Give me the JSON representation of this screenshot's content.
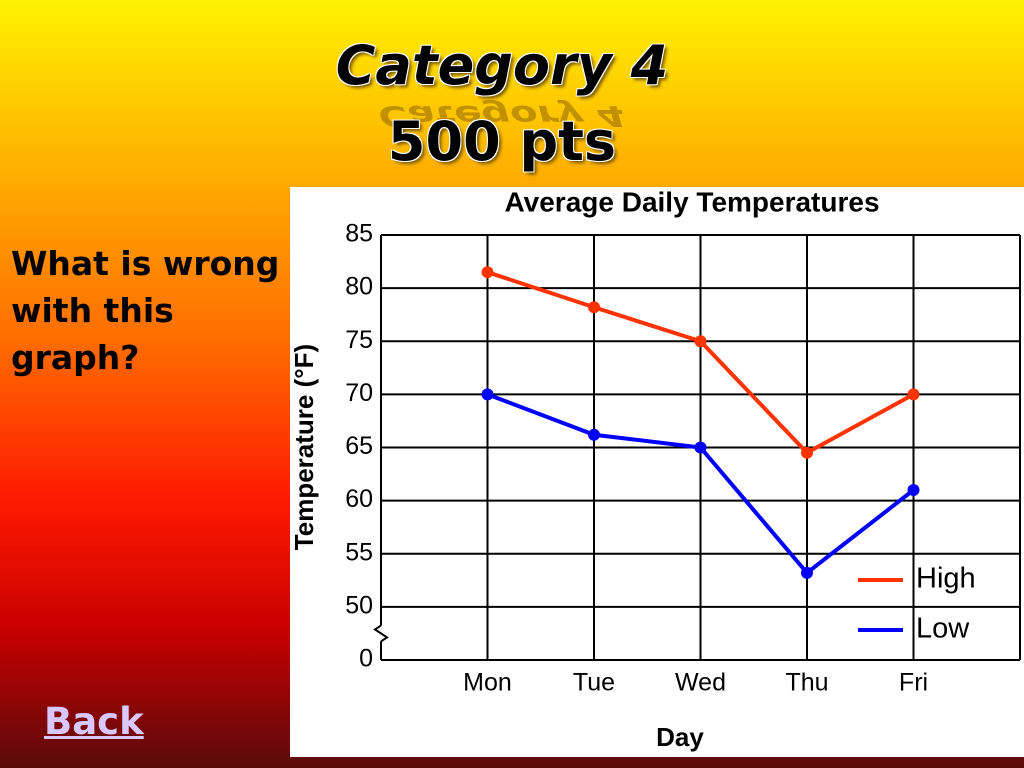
{
  "header": {
    "title": "Category 4",
    "points": "500 pts"
  },
  "question": "What is wrong with this graph?",
  "back_link": "Back",
  "chart_data": {
    "type": "line",
    "title": "Average Daily Temperatures",
    "x_label": "Day",
    "y_label": "Temperature (°F)",
    "categories": [
      "Mon",
      "Tue",
      "Wed",
      "Thu",
      "Fri"
    ],
    "series": [
      {
        "name": "High",
        "color": "#ff3300",
        "values": [
          81.5,
          78.2,
          75,
          64.5,
          70
        ]
      },
      {
        "name": "Low",
        "color": "#0000ff",
        "values": [
          70,
          66.2,
          65,
          53.2,
          61
        ]
      }
    ],
    "ylim": [
      0,
      85
    ],
    "yticks": [
      0,
      50,
      55,
      60,
      65,
      70,
      75,
      80,
      85
    ],
    "axis_break": true,
    "grid": true,
    "legend": "lower right"
  }
}
